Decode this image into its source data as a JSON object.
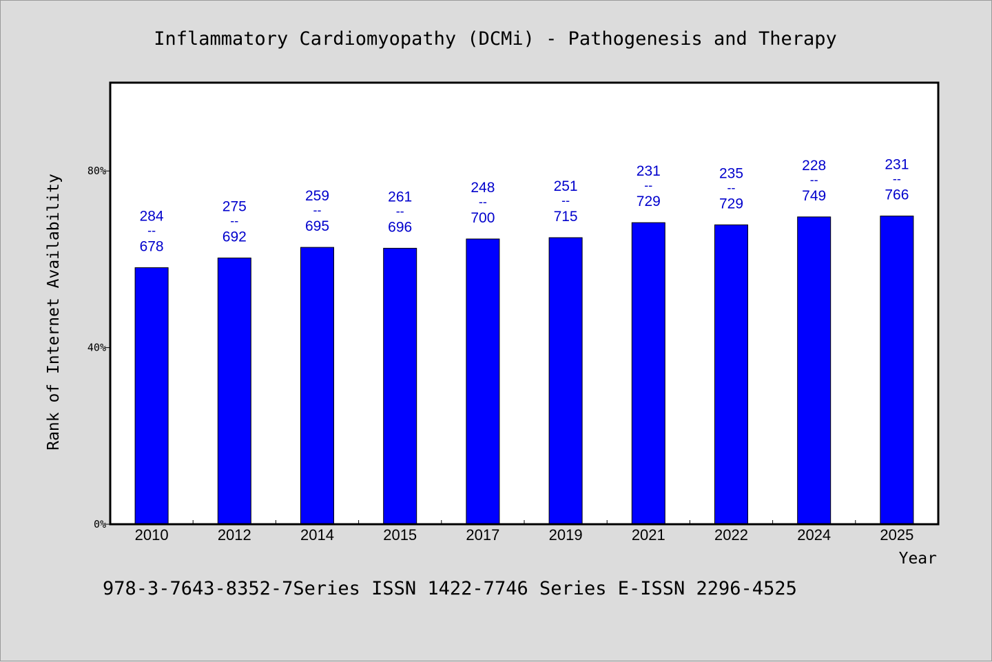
{
  "chart_data": {
    "type": "bar",
    "title": "Inflammatory Cardiomyopathy (DCMi) - Pathogenesis and Therapy",
    "xlabel": "Year",
    "ylabel": "Rank of Internet Availability",
    "categories": [
      "2010",
      "2012",
      "2014",
      "2015",
      "2017",
      "2019",
      "2021",
      "2022",
      "2024",
      "2025"
    ],
    "values": [
      58.1,
      60.3,
      62.7,
      62.5,
      64.6,
      64.9,
      68.3,
      67.8,
      69.6,
      69.8
    ],
    "rank_labels": [
      "284",
      "275",
      "259",
      "261",
      "248",
      "251",
      "231",
      "235",
      "228",
      "231"
    ],
    "total_labels": [
      "678",
      "692",
      "695",
      "696",
      "700",
      "715",
      "729",
      "729",
      "749",
      "766"
    ],
    "label_separator": "--",
    "yticks": [
      0,
      40,
      80
    ],
    "ytick_labels": [
      "0%",
      "40%",
      "80%"
    ],
    "ylim": [
      0,
      100
    ],
    "grid": false,
    "colors": {
      "bar": "#0000ff",
      "data_label": "#0000cc",
      "background": "#dcdcdc",
      "plot_background": "#ffffff"
    }
  },
  "footer": "978-3-7643-8352-7Series ISSN 1422-7746 Series E-ISSN 2296-4525"
}
